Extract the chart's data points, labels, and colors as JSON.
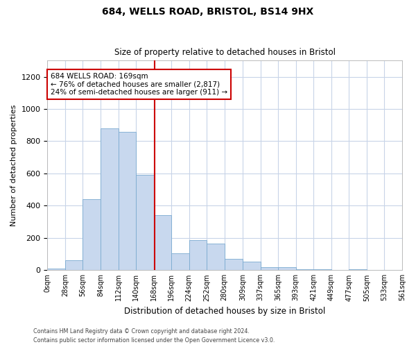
{
  "title1": "684, WELLS ROAD, BRISTOL, BS14 9HX",
  "title2": "Size of property relative to detached houses in Bristol",
  "xlabel": "Distribution of detached houses by size in Bristol",
  "ylabel": "Number of detached properties",
  "bin_edges": [
    0,
    28,
    56,
    84,
    112,
    140,
    168,
    196,
    224,
    252,
    280,
    309,
    337,
    365,
    393,
    421,
    449,
    477,
    505,
    533,
    561
  ],
  "bar_heights": [
    10,
    60,
    440,
    880,
    860,
    590,
    340,
    105,
    185,
    165,
    70,
    55,
    20,
    20,
    5,
    5,
    0,
    5,
    0,
    0
  ],
  "bar_color": "#c8d8ee",
  "bar_edge_color": "#7aaad0",
  "property_size": 169,
  "vline_color": "#cc0000",
  "annotation_line1": "684 WELLS ROAD: 169sqm",
  "annotation_line2": "← 76% of detached houses are smaller (2,817)",
  "annotation_line3": "24% of semi-detached houses are larger (911) →",
  "annotation_box_color": "#ffffff",
  "annotation_box_edge": "#cc0000",
  "ylim": [
    0,
    1300
  ],
  "yticks": [
    0,
    200,
    400,
    600,
    800,
    1000,
    1200
  ],
  "grid_color": "#c8d4e8",
  "footer1": "Contains HM Land Registry data © Crown copyright and database right 2024.",
  "footer2": "Contains public sector information licensed under the Open Government Licence v3.0.",
  "tick_labels": [
    "0sqm",
    "28sqm",
    "56sqm",
    "84sqm",
    "112sqm",
    "140sqm",
    "168sqm",
    "196sqm",
    "224sqm",
    "252sqm",
    "280sqm",
    "309sqm",
    "337sqm",
    "365sqm",
    "393sqm",
    "421sqm",
    "449sqm",
    "477sqm",
    "505sqm",
    "533sqm",
    "561sqm"
  ],
  "bg_color": "#ffffff"
}
